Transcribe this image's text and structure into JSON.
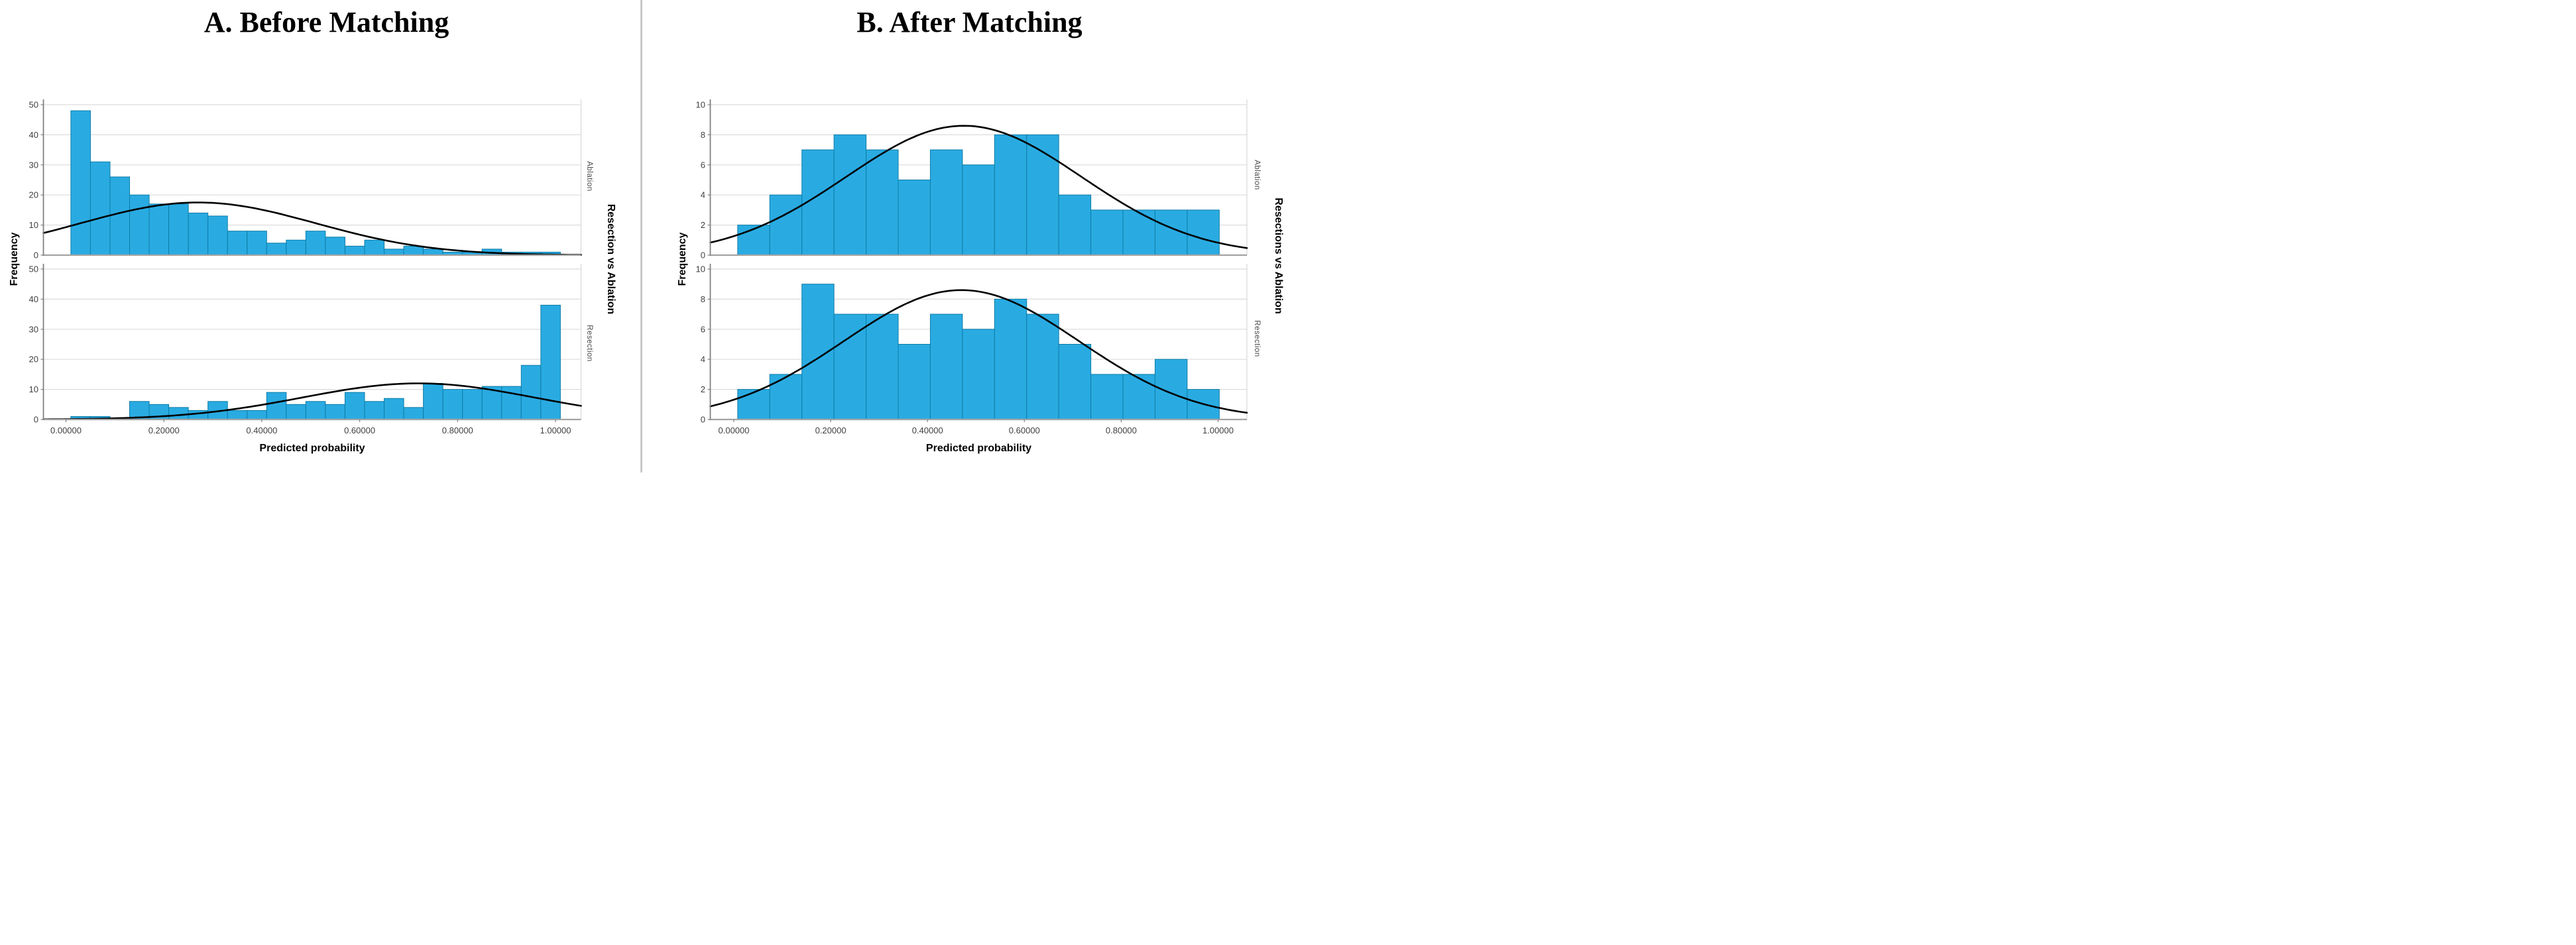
{
  "chart_data": [
    {
      "type": "bar",
      "chart_kind": "histogram-with-normal-curve",
      "title": "A. Before Matching",
      "xlabel": "Predicted probability",
      "ylabel": "Frequency",
      "group_label": "Resection vs Ablation",
      "legend_position": "none",
      "grid": "on",
      "xlim": [
        -0.05,
        1.05
      ],
      "x_ticks": {
        "values": [
          0,
          0.2,
          0.4,
          0.6,
          0.8,
          1.0
        ],
        "labels": [
          "0.00000",
          "0.20000",
          "0.40000",
          "0.60000",
          "0.80000",
          "1.00000"
        ]
      },
      "y_axis": {
        "max": 50,
        "grid_step": 10,
        "tick_labels": [
          "0",
          "10",
          "20",
          "30",
          "40",
          "50"
        ]
      },
      "bins": {
        "start": 0.01,
        "width": 0.04
      },
      "series": [
        {
          "name": "Ablation",
          "values": [
            48,
            31,
            26,
            20,
            17,
            17,
            14,
            13,
            8,
            8,
            4,
            5,
            8,
            6,
            3,
            5,
            2,
            3,
            2,
            1,
            1,
            2,
            1,
            1,
            1
          ],
          "normal_curve": {
            "mean": 0.27,
            "sigma": 0.24,
            "peak": 17.5
          }
        },
        {
          "name": "Resection",
          "values": [
            1,
            1,
            0,
            6,
            5,
            4,
            3,
            6,
            3,
            3,
            9,
            5,
            6,
            5,
            9,
            6,
            7,
            4,
            12,
            10,
            10,
            11,
            11,
            18,
            38
          ],
          "normal_curve": {
            "mean": 0.72,
            "sigma": 0.238,
            "peak": 12
          }
        }
      ]
    },
    {
      "type": "bar",
      "chart_kind": "histogram-with-normal-curve",
      "title": "B. After Matching",
      "xlabel": "Predicted probability",
      "ylabel": "Frequency",
      "group_label": "Resections vs Ablation",
      "legend_position": "none",
      "grid": "on",
      "xlim": [
        -0.05,
        1.06
      ],
      "x_ticks": {
        "values": [
          0,
          0.2,
          0.4,
          0.6,
          0.8,
          1.0
        ],
        "labels": [
          "0.00000",
          "0.20000",
          "0.40000",
          "0.60000",
          "0.80000",
          "1.00000"
        ]
      },
      "y_axis": {
        "max": 10,
        "grid_step": 2,
        "tick_labels": [
          "0",
          "2",
          "4",
          "6",
          "8",
          "10"
        ]
      },
      "bins": {
        "start": 0.008,
        "width": 0.0663
      },
      "series": [
        {
          "name": "Ablation",
          "values": [
            2,
            4,
            7,
            8,
            7,
            5,
            7,
            6,
            8,
            8,
            4,
            3,
            3,
            3,
            3
          ],
          "normal_curve": {
            "mean": 0.475,
            "sigma": 0.2425,
            "peak": 8.6
          }
        },
        {
          "name": "Resection",
          "values": [
            2,
            3,
            9,
            7,
            7,
            5,
            7,
            6,
            8,
            7,
            5,
            3,
            3,
            4,
            2
          ],
          "normal_curve": {
            "mean": 0.47,
            "sigma": 0.2425,
            "peak": 8.6
          }
        }
      ]
    }
  ],
  "colors": {
    "bar_fill": "#29ABE2",
    "bar_stroke": "#0F7CA6",
    "curve": "#000000",
    "grid": "#DCDCDC",
    "frame": "#D9D9D9",
    "axis": "#808080",
    "baseline": "#A3A3A3",
    "tick_text": "#3F3F3F",
    "divider": "#C9C9C9"
  }
}
